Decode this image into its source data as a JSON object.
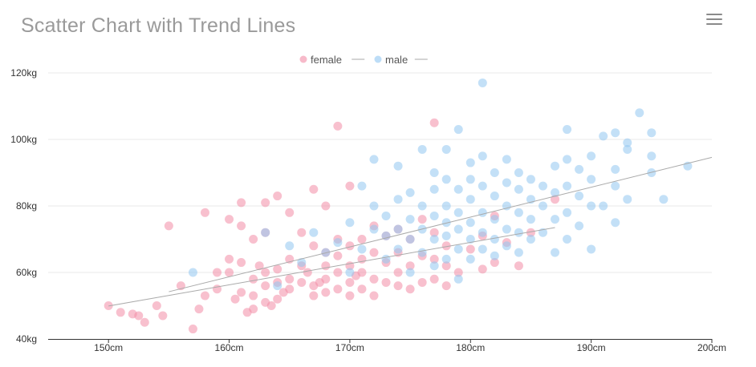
{
  "title": "Scatter Chart with Trend Lines",
  "toolbar": {
    "menu_icon": "hamburger-menu-icon"
  },
  "colors": {
    "female": "#f28ca6",
    "male": "#91c7f1",
    "trend": "#aaaaaa",
    "grid": "#e8e8e8",
    "axis": "#333333"
  },
  "chart_data": {
    "type": "scatter",
    "title": "Scatter Chart with Trend Lines",
    "xlabel": "",
    "ylabel": "",
    "x_unit": "cm",
    "y_unit": "kg",
    "xlim": [
      145,
      200
    ],
    "ylim": [
      40,
      120
    ],
    "x_ticks": [
      150,
      160,
      170,
      180,
      190,
      200
    ],
    "y_ticks": [
      40,
      60,
      80,
      100,
      120
    ],
    "x_tick_labels": [
      "150cm",
      "160cm",
      "170cm",
      "180cm",
      "190cm",
      "200cm"
    ],
    "y_tick_labels": [
      "40kg",
      "60kg",
      "80kg",
      "100kg",
      "120kg"
    ],
    "grid": "horizontal",
    "legend": {
      "position": "top-center",
      "items": [
        "female",
        "male"
      ]
    },
    "series": [
      {
        "name": "female",
        "trendline": {
          "x": [
            150,
            187
          ],
          "y": [
            49.9,
            73.5
          ]
        },
        "points": [
          [
            150,
            50
          ],
          [
            151,
            48
          ],
          [
            152,
            47.5
          ],
          [
            152.5,
            47
          ],
          [
            153,
            45
          ],
          [
            154,
            50
          ],
          [
            154.5,
            47
          ],
          [
            155,
            74
          ],
          [
            156,
            56
          ],
          [
            157,
            43
          ],
          [
            157.5,
            49
          ],
          [
            158,
            53
          ],
          [
            158,
            78
          ],
          [
            159,
            55
          ],
          [
            159,
            60
          ],
          [
            160,
            60
          ],
          [
            160,
            64
          ],
          [
            160,
            76
          ],
          [
            160.5,
            52
          ],
          [
            161,
            54
          ],
          [
            161,
            63
          ],
          [
            161,
            74
          ],
          [
            161,
            81
          ],
          [
            161.5,
            48
          ],
          [
            162,
            49
          ],
          [
            162,
            53
          ],
          [
            162,
            58
          ],
          [
            162,
            70
          ],
          [
            162.5,
            62
          ],
          [
            163,
            51
          ],
          [
            163,
            56
          ],
          [
            163,
            60
          ],
          [
            163,
            72
          ],
          [
            163,
            81
          ],
          [
            163.5,
            50
          ],
          [
            164,
            52
          ],
          [
            164,
            61
          ],
          [
            164,
            57
          ],
          [
            164,
            83
          ],
          [
            164.5,
            54
          ],
          [
            165,
            55
          ],
          [
            165,
            58
          ],
          [
            165,
            64
          ],
          [
            165,
            78
          ],
          [
            166,
            57
          ],
          [
            166,
            62
          ],
          [
            166,
            72
          ],
          [
            166.5,
            60
          ],
          [
            167,
            53
          ],
          [
            167,
            56
          ],
          [
            167,
            68
          ],
          [
            167,
            85
          ],
          [
            167.5,
            57
          ],
          [
            168,
            54
          ],
          [
            168,
            58
          ],
          [
            168,
            62
          ],
          [
            168,
            66
          ],
          [
            168,
            80
          ],
          [
            169,
            55
          ],
          [
            169,
            60
          ],
          [
            169,
            65
          ],
          [
            169,
            70
          ],
          [
            169,
            104
          ],
          [
            170,
            53
          ],
          [
            170,
            57
          ],
          [
            170,
            62
          ],
          [
            170,
            68
          ],
          [
            170,
            86
          ],
          [
            170.5,
            59
          ],
          [
            171,
            55
          ],
          [
            171,
            60
          ],
          [
            171,
            64
          ],
          [
            171,
            70
          ],
          [
            172,
            53
          ],
          [
            172,
            58
          ],
          [
            172,
            66
          ],
          [
            172,
            74
          ],
          [
            173,
            57
          ],
          [
            173,
            63
          ],
          [
            173,
            71
          ],
          [
            174,
            56
          ],
          [
            174,
            60
          ],
          [
            174,
            66
          ],
          [
            174,
            73
          ],
          [
            175,
            55
          ],
          [
            175,
            62
          ],
          [
            175,
            70
          ],
          [
            176,
            57
          ],
          [
            176,
            65
          ],
          [
            176,
            76
          ],
          [
            177,
            58
          ],
          [
            177,
            64
          ],
          [
            177,
            72
          ],
          [
            177,
            105
          ],
          [
            178,
            56
          ],
          [
            178,
            62
          ],
          [
            178,
            68
          ],
          [
            179,
            60
          ],
          [
            180,
            67
          ],
          [
            181,
            61
          ],
          [
            181,
            71
          ],
          [
            182,
            63
          ],
          [
            182,
            77
          ],
          [
            183,
            69
          ],
          [
            184,
            62
          ],
          [
            185,
            72
          ],
          [
            187,
            82
          ]
        ]
      },
      {
        "name": "male",
        "trendline": {
          "x": [
            155,
            200
          ],
          "y": [
            54.2,
            94.6
          ]
        },
        "points": [
          [
            157,
            60
          ],
          [
            163,
            72
          ],
          [
            164,
            56
          ],
          [
            165,
            68
          ],
          [
            166,
            63
          ],
          [
            167,
            72
          ],
          [
            168,
            66
          ],
          [
            169,
            69
          ],
          [
            170,
            60
          ],
          [
            170,
            75
          ],
          [
            171,
            67
          ],
          [
            171,
            86
          ],
          [
            172,
            73
          ],
          [
            172,
            80
          ],
          [
            172,
            94
          ],
          [
            173,
            64
          ],
          [
            173,
            71
          ],
          [
            173,
            77
          ],
          [
            174,
            67
          ],
          [
            174,
            73
          ],
          [
            174,
            82
          ],
          [
            174,
            92
          ],
          [
            175,
            60
          ],
          [
            175,
            70
          ],
          [
            175,
            76
          ],
          [
            175,
            84
          ],
          [
            176,
            66
          ],
          [
            176,
            73
          ],
          [
            176,
            80
          ],
          [
            176,
            97
          ],
          [
            177,
            62
          ],
          [
            177,
            70
          ],
          [
            177,
            77
          ],
          [
            177,
            85
          ],
          [
            177,
            90
          ],
          [
            178,
            64
          ],
          [
            178,
            71
          ],
          [
            178,
            75
          ],
          [
            178,
            80
          ],
          [
            178,
            88
          ],
          [
            178,
            97
          ],
          [
            179,
            58
          ],
          [
            179,
            67
          ],
          [
            179,
            73
          ],
          [
            179,
            78
          ],
          [
            179,
            85
          ],
          [
            179,
            103
          ],
          [
            180,
            64
          ],
          [
            180,
            70
          ],
          [
            180,
            75
          ],
          [
            180,
            82
          ],
          [
            180,
            88
          ],
          [
            180,
            93
          ],
          [
            181,
            67
          ],
          [
            181,
            72
          ],
          [
            181,
            78
          ],
          [
            181,
            86
          ],
          [
            181,
            95
          ],
          [
            181,
            117
          ],
          [
            182,
            65
          ],
          [
            182,
            70
          ],
          [
            182,
            76
          ],
          [
            182,
            83
          ],
          [
            182,
            90
          ],
          [
            183,
            68
          ],
          [
            183,
            73
          ],
          [
            183,
            80
          ],
          [
            183,
            87
          ],
          [
            183,
            94
          ],
          [
            184,
            66
          ],
          [
            184,
            72
          ],
          [
            184,
            78
          ],
          [
            184,
            85
          ],
          [
            184,
            90
          ],
          [
            185,
            70
          ],
          [
            185,
            76
          ],
          [
            185,
            82
          ],
          [
            185,
            88
          ],
          [
            186,
            72
          ],
          [
            186,
            80
          ],
          [
            186,
            86
          ],
          [
            187,
            66
          ],
          [
            187,
            76
          ],
          [
            187,
            84
          ],
          [
            187,
            92
          ],
          [
            188,
            70
          ],
          [
            188,
            78
          ],
          [
            188,
            86
          ],
          [
            188,
            94
          ],
          [
            188,
            103
          ],
          [
            189,
            74
          ],
          [
            189,
            83
          ],
          [
            189,
            91
          ],
          [
            190,
            67
          ],
          [
            190,
            80
          ],
          [
            190,
            88
          ],
          [
            190,
            95
          ],
          [
            191,
            80
          ],
          [
            191,
            101
          ],
          [
            192,
            75
          ],
          [
            192,
            86
          ],
          [
            192,
            91
          ],
          [
            192,
            102
          ],
          [
            193,
            82
          ],
          [
            193,
            97
          ],
          [
            193,
            99
          ],
          [
            194,
            108
          ],
          [
            195,
            90
          ],
          [
            195,
            95
          ],
          [
            195,
            102
          ],
          [
            196,
            82
          ],
          [
            198,
            92
          ]
        ]
      }
    ]
  }
}
